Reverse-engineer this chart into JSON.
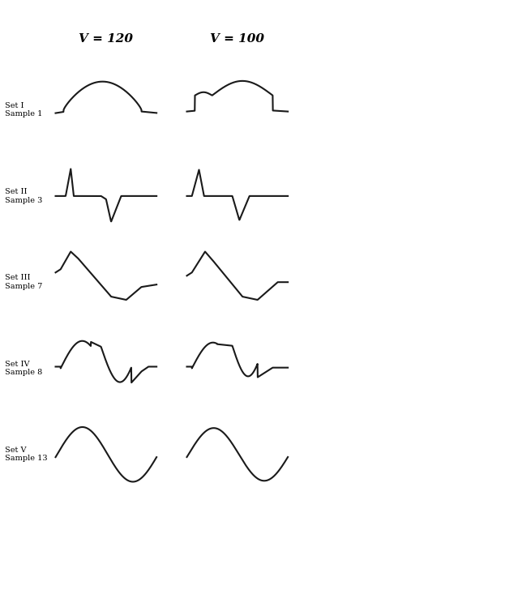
{
  "title_v120": "V = 120",
  "title_v100": "V = 100",
  "labels": [
    "Set I\nSample 1",
    "Set II\nSample 3",
    "Set III\nSample 7",
    "Set IV\nSample 8",
    "Set V\nSample 13"
  ],
  "background_color": "#ffffff",
  "line_color": "#1a1a1a",
  "line_width": 1.5,
  "figsize": [
    6.23,
    7.33
  ],
  "dpi": 100
}
